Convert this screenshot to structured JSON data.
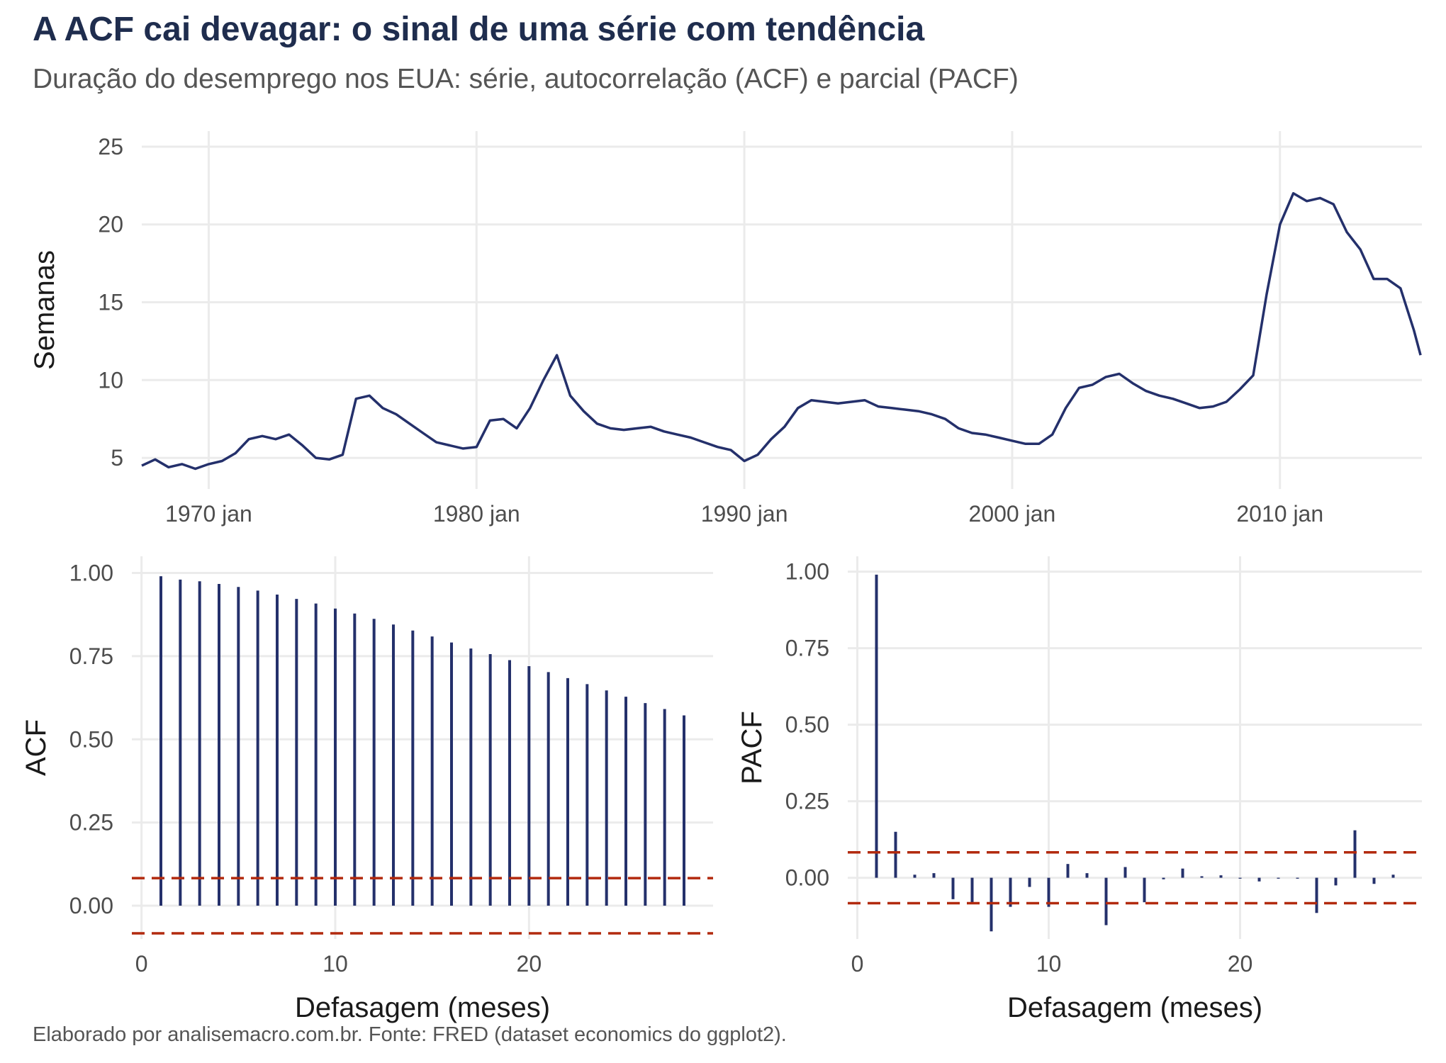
{
  "title": "A ACF cai devagar: o sinal de uma série com tendência",
  "subtitle": "Duração do desemprego nos EUA: série, autocorrelação (ACF) e parcial (PACF)",
  "caption": "Elaborado por analisemacro.com.br. Fonte: FRED (dataset economics do ggplot2).",
  "colors": {
    "line": "#24306b",
    "bars": "#24306b",
    "ci": "#b22a0e",
    "grid": "#ebebeb"
  },
  "chart_data": [
    {
      "type": "line",
      "xlabel": "",
      "ylabel": "Semanas",
      "x_ticks": [
        "1970 jan",
        "1980 jan",
        "1990 jan",
        "2000 jan",
        "2010 jan"
      ],
      "y_ticks": [
        "5",
        "10",
        "15",
        "20",
        "25"
      ],
      "ylim": [
        3,
        26
      ],
      "xlim": [
        1967.5,
        2015.3
      ],
      "grid": true,
      "x": [
        "1967-07",
        "1968-01",
        "1968-07",
        "1969-01",
        "1969-07",
        "1970-01",
        "1970-07",
        "1971-01",
        "1971-07",
        "1972-01",
        "1972-07",
        "1973-01",
        "1973-07",
        "1974-01",
        "1974-07",
        "1975-01",
        "1975-07",
        "1976-01",
        "1976-07",
        "1977-01",
        "1977-07",
        "1978-01",
        "1978-07",
        "1979-01",
        "1979-07",
        "1980-01",
        "1980-07",
        "1981-01",
        "1981-07",
        "1982-01",
        "1982-07",
        "1983-01",
        "1983-07",
        "1984-01",
        "1984-07",
        "1985-01",
        "1985-07",
        "1986-01",
        "1986-07",
        "1987-01",
        "1987-07",
        "1988-01",
        "1988-07",
        "1989-01",
        "1989-07",
        "1990-01",
        "1990-07",
        "1991-01",
        "1991-07",
        "1992-01",
        "1992-07",
        "1993-01",
        "1993-07",
        "1994-01",
        "1994-07",
        "1995-01",
        "1995-07",
        "1996-01",
        "1996-07",
        "1997-01",
        "1997-07",
        "1998-01",
        "1998-07",
        "1999-01",
        "1999-07",
        "2000-01",
        "2000-07",
        "2001-01",
        "2001-07",
        "2002-01",
        "2002-07",
        "2003-01",
        "2003-07",
        "2004-01",
        "2004-07",
        "2005-01",
        "2005-07",
        "2006-01",
        "2006-07",
        "2007-01",
        "2007-07",
        "2008-01",
        "2008-07",
        "2009-01",
        "2009-07",
        "2010-01",
        "2010-07",
        "2011-01",
        "2011-07",
        "2012-01",
        "2012-07",
        "2013-01",
        "2013-07",
        "2014-01",
        "2014-07",
        "2015-01",
        "2015-04"
      ],
      "values": [
        4.5,
        4.9,
        4.4,
        4.6,
        4.3,
        4.6,
        4.8,
        5.3,
        6.2,
        6.4,
        6.2,
        6.5,
        5.8,
        5.0,
        4.9,
        5.2,
        8.8,
        9.0,
        8.2,
        7.8,
        7.2,
        6.6,
        6.0,
        5.8,
        5.6,
        5.7,
        7.4,
        7.5,
        6.9,
        8.2,
        10.0,
        11.6,
        9.0,
        8.0,
        7.2,
        6.9,
        6.8,
        6.9,
        7.0,
        6.7,
        6.5,
        6.3,
        6.0,
        5.7,
        5.5,
        4.8,
        5.2,
        6.2,
        7.0,
        8.2,
        8.7,
        8.6,
        8.5,
        8.6,
        8.7,
        8.3,
        8.2,
        8.1,
        8.0,
        7.8,
        7.5,
        6.9,
        6.6,
        6.5,
        6.3,
        6.1,
        5.9,
        5.9,
        6.5,
        8.2,
        9.5,
        9.7,
        10.2,
        10.4,
        9.8,
        9.3,
        9.0,
        8.8,
        8.5,
        8.2,
        8.3,
        8.6,
        9.4,
        10.3,
        15.5,
        20.0,
        22.0,
        21.5,
        21.7,
        21.3,
        19.5,
        18.4,
        16.5,
        16.5,
        15.9,
        13.2,
        11.6
      ]
    },
    {
      "type": "bar",
      "xlabel": "Defasagem (meses)",
      "ylabel": "ACF",
      "x_ticks": [
        "0",
        "10",
        "20"
      ],
      "y_ticks": [
        "0.00",
        "0.25",
        "0.50",
        "0.75",
        "1.00"
      ],
      "xlim": [
        -0.5,
        29.5
      ],
      "ylim": [
        -0.1,
        1.05
      ],
      "ci": [
        0.083,
        -0.083
      ],
      "lags": [
        1,
        2,
        3,
        4,
        5,
        6,
        7,
        8,
        9,
        10,
        11,
        12,
        13,
        14,
        15,
        16,
        17,
        18,
        19,
        20,
        21,
        22,
        23,
        24,
        25,
        26,
        27,
        28
      ],
      "values": [
        0.99,
        0.98,
        0.975,
        0.967,
        0.958,
        0.947,
        0.935,
        0.922,
        0.908,
        0.893,
        0.878,
        0.862,
        0.845,
        0.827,
        0.809,
        0.791,
        0.773,
        0.756,
        0.738,
        0.72,
        0.702,
        0.684,
        0.666,
        0.647,
        0.628,
        0.609,
        0.591,
        0.572
      ]
    },
    {
      "type": "bar",
      "xlabel": "Defasagem (meses)",
      "ylabel": "PACF",
      "x_ticks": [
        "0",
        "10",
        "20"
      ],
      "y_ticks": [
        "0.00",
        "0.25",
        "0.50",
        "0.75",
        "1.00"
      ],
      "xlim": [
        -0.5,
        29.5
      ],
      "ylim": [
        -0.2,
        1.05
      ],
      "ci": [
        0.083,
        -0.083
      ],
      "lags": [
        1,
        2,
        3,
        4,
        5,
        6,
        7,
        8,
        9,
        10,
        11,
        12,
        13,
        14,
        15,
        16,
        17,
        18,
        19,
        20,
        21,
        22,
        23,
        24,
        25,
        26,
        27,
        28
      ],
      "values": [
        0.99,
        0.15,
        0.01,
        0.015,
        -0.07,
        -0.085,
        -0.175,
        -0.095,
        -0.03,
        -0.095,
        0.045,
        0.015,
        -0.155,
        0.035,
        -0.08,
        -0.005,
        0.03,
        0.005,
        0.008,
        -0.003,
        -0.012,
        -0.003,
        -0.003,
        -0.115,
        -0.025,
        0.155,
        -0.02,
        0.01
      ]
    }
  ]
}
